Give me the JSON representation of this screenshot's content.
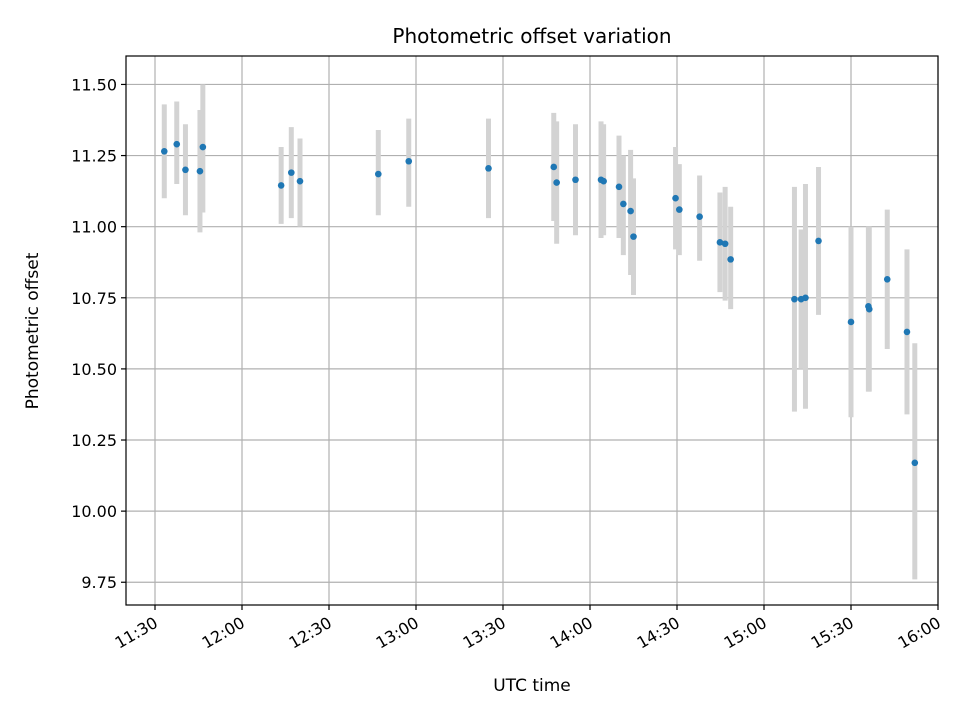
{
  "chart_data": {
    "type": "scatter",
    "title": "Photometric offset variation",
    "xlabel": "UTC time",
    "ylabel": "Photometric offset",
    "grid": true,
    "x_tick_labels": [
      "11:30",
      "12:00",
      "12:30",
      "13:00",
      "13:30",
      "14:00",
      "14:30",
      "15:00",
      "15:30",
      "16:00"
    ],
    "x_tick_values_min": [
      690,
      720,
      750,
      780,
      810,
      840,
      870,
      900,
      930,
      960
    ],
    "xlim_min": [
      680,
      960
    ],
    "y_tick_labels": [
      "9.75",
      "10.00",
      "10.25",
      "10.50",
      "10.75",
      "11.00",
      "11.25",
      "11.50"
    ],
    "y_tick_values": [
      9.75,
      10.0,
      10.25,
      10.5,
      10.75,
      11.0,
      11.25,
      11.5
    ],
    "ylim": [
      9.67,
      11.6
    ],
    "colors": {
      "point": "#1f77b4",
      "errorbar": "#d3d3d3",
      "grid": "#b0b0b0"
    },
    "series": [
      {
        "name": "photometric offset",
        "points": [
          {
            "t": 693.2,
            "y": 11.265,
            "err_low": 11.1,
            "err_high": 11.43
          },
          {
            "t": 697.5,
            "y": 11.29,
            "err_low": 11.15,
            "err_high": 11.44
          },
          {
            "t": 700.5,
            "y": 11.2,
            "err_low": 11.04,
            "err_high": 11.36
          },
          {
            "t": 705.5,
            "y": 11.195,
            "err_low": 10.98,
            "err_high": 11.41
          },
          {
            "t": 706.5,
            "y": 11.28,
            "err_low": 11.05,
            "err_high": 11.5
          },
          {
            "t": 733.5,
            "y": 11.145,
            "err_low": 11.01,
            "err_high": 11.28
          },
          {
            "t": 737.0,
            "y": 11.19,
            "err_low": 11.03,
            "err_high": 11.35
          },
          {
            "t": 740.0,
            "y": 11.16,
            "err_low": 11.0,
            "err_high": 11.31
          },
          {
            "t": 767.0,
            "y": 11.185,
            "err_low": 11.04,
            "err_high": 11.34
          },
          {
            "t": 777.5,
            "y": 11.23,
            "err_low": 11.07,
            "err_high": 11.38
          },
          {
            "t": 805.0,
            "y": 11.205,
            "err_low": 11.03,
            "err_high": 11.38
          },
          {
            "t": 827.5,
            "y": 11.21,
            "err_low": 11.02,
            "err_high": 11.4
          },
          {
            "t": 828.5,
            "y": 11.155,
            "err_low": 10.94,
            "err_high": 11.37
          },
          {
            "t": 835.0,
            "y": 11.165,
            "err_low": 10.97,
            "err_high": 11.36
          },
          {
            "t": 843.8,
            "y": 11.165,
            "err_low": 10.96,
            "err_high": 11.37
          },
          {
            "t": 844.7,
            "y": 11.16,
            "err_low": 10.97,
            "err_high": 11.36
          },
          {
            "t": 850.0,
            "y": 11.14,
            "err_low": 10.96,
            "err_high": 11.32
          },
          {
            "t": 851.5,
            "y": 11.08,
            "err_low": 10.9,
            "err_high": 11.25
          },
          {
            "t": 854.0,
            "y": 11.055,
            "err_low": 10.83,
            "err_high": 11.27
          },
          {
            "t": 855.0,
            "y": 10.965,
            "err_low": 10.76,
            "err_high": 11.17
          },
          {
            "t": 869.5,
            "y": 11.1,
            "err_low": 10.92,
            "err_high": 11.28
          },
          {
            "t": 870.8,
            "y": 11.06,
            "err_low": 10.9,
            "err_high": 11.22
          },
          {
            "t": 877.8,
            "y": 11.035,
            "err_low": 10.88,
            "err_high": 11.18
          },
          {
            "t": 884.8,
            "y": 10.945,
            "err_low": 10.77,
            "err_high": 11.12
          },
          {
            "t": 886.6,
            "y": 10.94,
            "err_low": 10.74,
            "err_high": 11.14
          },
          {
            "t": 888.5,
            "y": 10.885,
            "err_low": 10.71,
            "err_high": 11.07
          },
          {
            "t": 910.5,
            "y": 10.745,
            "err_low": 10.35,
            "err_high": 11.14
          },
          {
            "t": 912.8,
            "y": 10.745,
            "err_low": 10.5,
            "err_high": 10.99
          },
          {
            "t": 914.3,
            "y": 10.75,
            "err_low": 10.36,
            "err_high": 11.15
          },
          {
            "t": 918.8,
            "y": 10.95,
            "err_low": 10.69,
            "err_high": 11.21
          },
          {
            "t": 930.0,
            "y": 10.665,
            "err_low": 10.33,
            "err_high": 11.0
          },
          {
            "t": 936.0,
            "y": 10.72,
            "err_low": 10.42,
            "err_high": 11.0
          },
          {
            "t": 936.3,
            "y": 10.71,
            "err_low": 10.42,
            "err_high": 11.0
          },
          {
            "t": 942.5,
            "y": 10.815,
            "err_low": 10.57,
            "err_high": 11.06
          },
          {
            "t": 949.3,
            "y": 10.63,
            "err_low": 10.34,
            "err_high": 10.92
          },
          {
            "t": 952.0,
            "y": 10.17,
            "err_low": 9.76,
            "err_high": 10.59
          }
        ]
      }
    ]
  }
}
